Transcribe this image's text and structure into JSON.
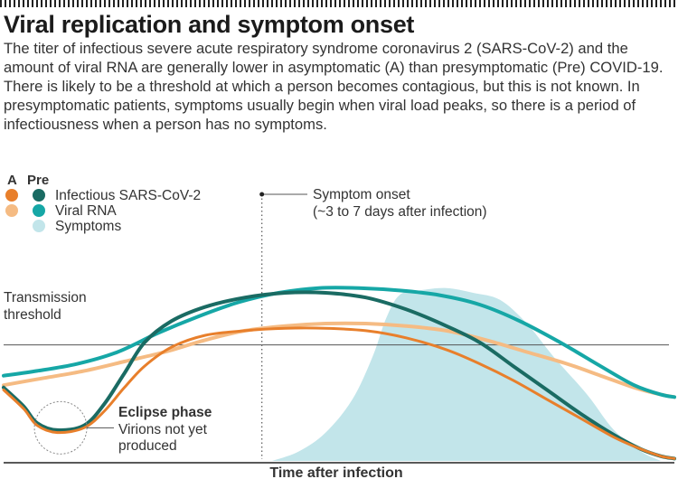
{
  "title": "Viral replication and symptom onset",
  "intro": "The titer of infectious severe acute respiratory syndrome coronavirus 2 (SARS-CoV-2) and the amount of viral RNA are generally lower in asymptomatic (A) than presymptomatic (Pre) COVID-19. There is likely to be a threshold at which a person becomes contagious, but this is not known. In presymptomatic patients, symptoms usually begin when viral load peaks, so there is a period of infectiousness when a person has no symptoms.",
  "colors": {
    "a_infectious": "#e87f2b",
    "pre_infectious": "#1a6b63",
    "a_rna": "#f5bb83",
    "pre_rna": "#16a7a6",
    "symptoms": "#c2e5ea",
    "threshold": "#555555"
  },
  "chart_data": {
    "type": "line",
    "title": "",
    "xlabel": "Time after infection",
    "ylabel": "",
    "x_range": [
      0,
      100
    ],
    "y_range": [
      0,
      100
    ],
    "legend": {
      "header_a": "A",
      "header_pre": "Pre",
      "entries": [
        {
          "label": "Infectious SARS-CoV-2",
          "a_color": "#e87f2b",
          "pre_color": "#1a6b63"
        },
        {
          "label": "Viral RNA",
          "a_color": "#f5bb83",
          "pre_color": "#16a7a6"
        },
        {
          "label": "Symptoms",
          "pre_color": "#c2e5ea"
        }
      ]
    },
    "threshold": {
      "label_line1": "Transmission",
      "label_line2": "threshold",
      "y": 49
    },
    "symptom_onset": {
      "x": 38.5,
      "label_line1": "Symptom onset",
      "label_line2": "(~3 to 7 days after infection)"
    },
    "eclipse": {
      "title": "Eclipse phase",
      "line1": "Virions not yet",
      "line2": "produced",
      "x": 8.5,
      "y": 14
    }
  },
  "series_data": {
    "symptoms": [
      [
        40,
        0
      ],
      [
        44,
        4
      ],
      [
        48,
        12
      ],
      [
        52,
        26
      ],
      [
        55,
        44
      ],
      [
        57,
        60
      ],
      [
        59,
        70
      ],
      [
        62,
        72
      ],
      [
        66,
        73
      ],
      [
        70,
        71
      ],
      [
        74,
        68
      ],
      [
        78,
        58
      ],
      [
        82,
        44
      ],
      [
        87,
        28
      ],
      [
        91,
        13
      ],
      [
        95,
        4
      ],
      [
        98,
        0
      ]
    ],
    "pre_rna": [
      [
        0,
        36
      ],
      [
        5,
        38
      ],
      [
        11,
        41
      ],
      [
        17,
        46
      ],
      [
        23,
        54
      ],
      [
        29,
        61
      ],
      [
        35,
        67
      ],
      [
        41,
        71
      ],
      [
        47,
        73
      ],
      [
        53,
        73
      ],
      [
        59,
        72
      ],
      [
        65,
        70
      ],
      [
        71,
        66
      ],
      [
        77,
        59
      ],
      [
        83,
        50
      ],
      [
        89,
        40
      ],
      [
        94,
        32
      ],
      [
        98,
        28
      ],
      [
        100,
        27
      ]
    ],
    "a_rna": [
      [
        0,
        32
      ],
      [
        6,
        35
      ],
      [
        12,
        38
      ],
      [
        18,
        42
      ],
      [
        24,
        46
      ],
      [
        30,
        51
      ],
      [
        36,
        55
      ],
      [
        42,
        57
      ],
      [
        48,
        58
      ],
      [
        54,
        58
      ],
      [
        60,
        57
      ],
      [
        66,
        55
      ],
      [
        72,
        51
      ],
      [
        78,
        46
      ],
      [
        84,
        41
      ],
      [
        89,
        36
      ],
      [
        94,
        31
      ],
      [
        98,
        28
      ],
      [
        100,
        27
      ]
    ],
    "pre_inf": [
      [
        0,
        31
      ],
      [
        3,
        23
      ],
      [
        5,
        16
      ],
      [
        8,
        13
      ],
      [
        12,
        15
      ],
      [
        15,
        24
      ],
      [
        18,
        37
      ],
      [
        21,
        50
      ],
      [
        25,
        59
      ],
      [
        30,
        65
      ],
      [
        36,
        69
      ],
      [
        42,
        71
      ],
      [
        48,
        71
      ],
      [
        54,
        69
      ],
      [
        60,
        64
      ],
      [
        66,
        57
      ],
      [
        71,
        50
      ],
      [
        76,
        40
      ],
      [
        81,
        30
      ],
      [
        86,
        20
      ],
      [
        91,
        11
      ],
      [
        95,
        5
      ],
      [
        98,
        2
      ],
      [
        100,
        1
      ]
    ],
    "a_inf": [
      [
        0,
        30
      ],
      [
        3,
        22
      ],
      [
        5,
        15
      ],
      [
        8,
        12
      ],
      [
        12,
        14
      ],
      [
        15,
        21
      ],
      [
        18,
        31
      ],
      [
        21,
        40
      ],
      [
        25,
        48
      ],
      [
        30,
        53
      ],
      [
        36,
        55
      ],
      [
        42,
        56
      ],
      [
        48,
        56
      ],
      [
        54,
        55
      ],
      [
        60,
        52
      ],
      [
        66,
        47
      ],
      [
        71,
        41
      ],
      [
        76,
        34
      ],
      [
        81,
        26
      ],
      [
        86,
        18
      ],
      [
        91,
        10
      ],
      [
        95,
        5
      ],
      [
        98,
        2
      ],
      [
        100,
        1
      ]
    ]
  }
}
